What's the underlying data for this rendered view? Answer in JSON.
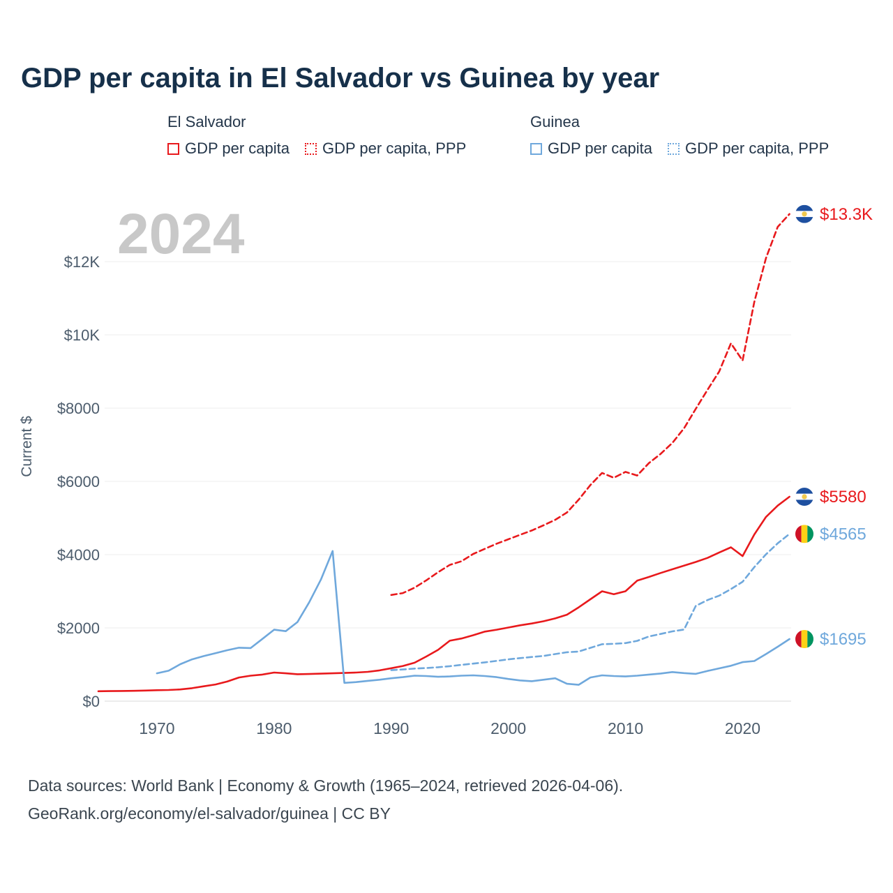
{
  "title": "GDP per capita in El Salvador vs Guinea by year",
  "watermark": "2024",
  "legend": {
    "groups": [
      {
        "country": "El Salvador",
        "items": [
          {
            "label": "GDP per capita",
            "style": "solid",
            "color": "#e8191c"
          },
          {
            "label": "GDP per capita, PPP",
            "style": "dotted",
            "color": "#e8191c"
          }
        ]
      },
      {
        "country": "Guinea",
        "items": [
          {
            "label": "GDP per capita",
            "style": "solid",
            "color": "#6fa8dc"
          },
          {
            "label": "GDP per capita, PPP",
            "style": "dotted",
            "color": "#6fa8dc"
          }
        ]
      }
    ]
  },
  "footer": {
    "line1": "Data sources: World Bank | Economy & Growth (1965–2024, retrieved 2026-04-06).",
    "line2": "GeoRank.org/economy/el-salvador/guinea | CC BY"
  },
  "chart_data": {
    "type": "line",
    "title": "GDP per capita in El Salvador vs Guinea by year",
    "xlabel": "",
    "ylabel": "Current $",
    "xlim": [
      1964,
      2025
    ],
    "ylim": [
      0,
      13600
    ],
    "grid": "horizontal",
    "legend_position": "top",
    "yticks": [
      {
        "value": 0,
        "label": "$0"
      },
      {
        "value": 2000,
        "label": "$2000"
      },
      {
        "value": 4000,
        "label": "$4000"
      },
      {
        "value": 6000,
        "label": "$6000"
      },
      {
        "value": 8000,
        "label": "$8000"
      },
      {
        "value": 10000,
        "label": "$10K"
      },
      {
        "value": 12000,
        "label": "$12K"
      }
    ],
    "xticks": [
      1970,
      1980,
      1990,
      2000,
      2010,
      2020
    ],
    "series": [
      {
        "name": "El Salvador — GDP per capita, PPP",
        "country": "El Salvador",
        "color": "#e8191c",
        "line": "dashed",
        "flag": "sv",
        "end_label": "$13.3K",
        "points": [
          [
            1990,
            2900
          ],
          [
            1991,
            2950
          ],
          [
            1992,
            3100
          ],
          [
            1993,
            3300
          ],
          [
            1994,
            3520
          ],
          [
            1995,
            3720
          ],
          [
            1996,
            3820
          ],
          [
            1997,
            4020
          ],
          [
            1998,
            4160
          ],
          [
            1999,
            4300
          ],
          [
            2000,
            4420
          ],
          [
            2001,
            4540
          ],
          [
            2002,
            4660
          ],
          [
            2003,
            4800
          ],
          [
            2004,
            4950
          ],
          [
            2005,
            5150
          ],
          [
            2006,
            5500
          ],
          [
            2007,
            5900
          ],
          [
            2008,
            6230
          ],
          [
            2009,
            6100
          ],
          [
            2010,
            6260
          ],
          [
            2011,
            6160
          ],
          [
            2012,
            6500
          ],
          [
            2013,
            6750
          ],
          [
            2014,
            7050
          ],
          [
            2015,
            7450
          ],
          [
            2016,
            7980
          ],
          [
            2017,
            8500
          ],
          [
            2018,
            9000
          ],
          [
            2019,
            9770
          ],
          [
            2020,
            9300
          ],
          [
            2021,
            10900
          ],
          [
            2022,
            12100
          ],
          [
            2023,
            12950
          ],
          [
            2024,
            13300
          ]
        ]
      },
      {
        "name": "El Salvador — GDP per capita",
        "country": "El Salvador",
        "color": "#e8191c",
        "line": "solid",
        "flag": "sv",
        "end_label": "$5580",
        "points": [
          [
            1965,
            270
          ],
          [
            1966,
            275
          ],
          [
            1967,
            278
          ],
          [
            1968,
            282
          ],
          [
            1969,
            290
          ],
          [
            1970,
            300
          ],
          [
            1971,
            305
          ],
          [
            1972,
            320
          ],
          [
            1973,
            355
          ],
          [
            1974,
            405
          ],
          [
            1975,
            455
          ],
          [
            1976,
            535
          ],
          [
            1977,
            645
          ],
          [
            1978,
            695
          ],
          [
            1979,
            725
          ],
          [
            1980,
            780
          ],
          [
            1981,
            760
          ],
          [
            1982,
            735
          ],
          [
            1983,
            740
          ],
          [
            1984,
            750
          ],
          [
            1985,
            760
          ],
          [
            1986,
            770
          ],
          [
            1987,
            780
          ],
          [
            1988,
            800
          ],
          [
            1989,
            840
          ],
          [
            1990,
            900
          ],
          [
            1991,
            960
          ],
          [
            1992,
            1050
          ],
          [
            1993,
            1220
          ],
          [
            1994,
            1400
          ],
          [
            1995,
            1650
          ],
          [
            1996,
            1710
          ],
          [
            1997,
            1800
          ],
          [
            1998,
            1900
          ],
          [
            1999,
            1950
          ],
          [
            2000,
            2010
          ],
          [
            2001,
            2070
          ],
          [
            2002,
            2120
          ],
          [
            2003,
            2180
          ],
          [
            2004,
            2260
          ],
          [
            2005,
            2360
          ],
          [
            2006,
            2560
          ],
          [
            2007,
            2780
          ],
          [
            2008,
            3000
          ],
          [
            2009,
            2920
          ],
          [
            2010,
            3000
          ],
          [
            2011,
            3290
          ],
          [
            2012,
            3390
          ],
          [
            2013,
            3500
          ],
          [
            2014,
            3600
          ],
          [
            2015,
            3700
          ],
          [
            2016,
            3800
          ],
          [
            2017,
            3910
          ],
          [
            2018,
            4060
          ],
          [
            2019,
            4200
          ],
          [
            2020,
            3960
          ],
          [
            2021,
            4550
          ],
          [
            2022,
            5030
          ],
          [
            2023,
            5340
          ],
          [
            2024,
            5580
          ]
        ]
      },
      {
        "name": "Guinea — GDP per capita, PPP",
        "country": "Guinea",
        "color": "#6fa8dc",
        "line": "dashed",
        "flag": "gn",
        "end_label": "$4565",
        "points": [
          [
            1990,
            845
          ],
          [
            1991,
            865
          ],
          [
            1992,
            890
          ],
          [
            1993,
            905
          ],
          [
            1994,
            925
          ],
          [
            1995,
            955
          ],
          [
            1996,
            990
          ],
          [
            1997,
            1025
          ],
          [
            1998,
            1060
          ],
          [
            1999,
            1100
          ],
          [
            2000,
            1140
          ],
          [
            2001,
            1175
          ],
          [
            2002,
            1205
          ],
          [
            2003,
            1235
          ],
          [
            2004,
            1285
          ],
          [
            2005,
            1335
          ],
          [
            2006,
            1355
          ],
          [
            2007,
            1455
          ],
          [
            2008,
            1555
          ],
          [
            2009,
            1565
          ],
          [
            2010,
            1585
          ],
          [
            2011,
            1645
          ],
          [
            2012,
            1765
          ],
          [
            2013,
            1835
          ],
          [
            2014,
            1905
          ],
          [
            2015,
            1955
          ],
          [
            2016,
            2600
          ],
          [
            2017,
            2760
          ],
          [
            2018,
            2880
          ],
          [
            2019,
            3060
          ],
          [
            2020,
            3260
          ],
          [
            2021,
            3660
          ],
          [
            2022,
            4010
          ],
          [
            2023,
            4310
          ],
          [
            2024,
            4565
          ]
        ]
      },
      {
        "name": "Guinea — GDP per capita",
        "country": "Guinea",
        "color": "#6fa8dc",
        "line": "solid",
        "flag": "gn",
        "end_label": "$1695",
        "points": [
          [
            1970,
            760
          ],
          [
            1971,
            830
          ],
          [
            1972,
            1010
          ],
          [
            1973,
            1140
          ],
          [
            1974,
            1230
          ],
          [
            1975,
            1310
          ],
          [
            1976,
            1390
          ],
          [
            1977,
            1460
          ],
          [
            1978,
            1450
          ],
          [
            1979,
            1700
          ],
          [
            1980,
            1950
          ],
          [
            1981,
            1910
          ],
          [
            1982,
            2160
          ],
          [
            1983,
            2700
          ],
          [
            1984,
            3320
          ],
          [
            1985,
            4100
          ],
          [
            1986,
            500
          ],
          [
            1987,
            520
          ],
          [
            1988,
            555
          ],
          [
            1989,
            585
          ],
          [
            1990,
            625
          ],
          [
            1991,
            655
          ],
          [
            1992,
            695
          ],
          [
            1993,
            685
          ],
          [
            1994,
            665
          ],
          [
            1995,
            675
          ],
          [
            1996,
            695
          ],
          [
            1997,
            705
          ],
          [
            1998,
            685
          ],
          [
            1999,
            655
          ],
          [
            2000,
            605
          ],
          [
            2001,
            565
          ],
          [
            2002,
            545
          ],
          [
            2003,
            585
          ],
          [
            2004,
            625
          ],
          [
            2005,
            475
          ],
          [
            2006,
            445
          ],
          [
            2007,
            645
          ],
          [
            2008,
            705
          ],
          [
            2009,
            685
          ],
          [
            2010,
            675
          ],
          [
            2011,
            695
          ],
          [
            2012,
            725
          ],
          [
            2013,
            755
          ],
          [
            2014,
            795
          ],
          [
            2015,
            765
          ],
          [
            2016,
            745
          ],
          [
            2017,
            825
          ],
          [
            2018,
            895
          ],
          [
            2019,
            965
          ],
          [
            2020,
            1065
          ],
          [
            2021,
            1095
          ],
          [
            2022,
            1285
          ],
          [
            2023,
            1485
          ],
          [
            2024,
            1695
          ]
        ]
      }
    ]
  }
}
